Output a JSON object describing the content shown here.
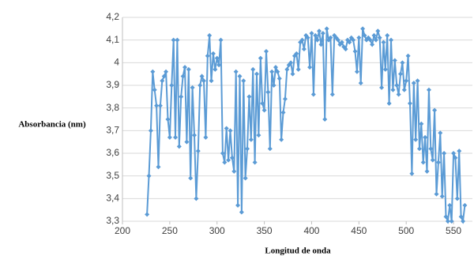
{
  "chart_data": {
    "type": "line",
    "xlabel": "Longitud de onda",
    "ylabel": "Absorbancia (nm)",
    "xlim": [
      200,
      570
    ],
    "xticks": [
      200,
      250,
      300,
      350,
      400,
      450,
      500,
      550
    ],
    "ylim": [
      3.3,
      4.2
    ],
    "yticks": [
      {
        "value": 3.3,
        "label": "3,3"
      },
      {
        "value": 3.4,
        "label": "3,4"
      },
      {
        "value": 3.5,
        "label": "3,5"
      },
      {
        "value": 3.6,
        "label": "3,6"
      },
      {
        "value": 3.7,
        "label": "3,7"
      },
      {
        "value": 3.8,
        "label": "3,8"
      },
      {
        "value": 3.9,
        "label": "3,9"
      },
      {
        "value": 4,
        "label": "4"
      },
      {
        "value": 4.1,
        "label": "4,1"
      },
      {
        "value": 4.2,
        "label": "4,2"
      }
    ],
    "grid": true,
    "color": "#5b9bd5",
    "x": [
      226,
      228,
      230,
      232,
      234,
      236,
      238,
      240,
      242,
      244,
      246,
      248,
      250,
      252,
      254,
      256,
      258,
      260,
      262,
      264,
      266,
      268,
      270,
      272,
      274,
      276,
      278,
      280,
      282,
      284,
      286,
      288,
      290,
      292,
      294,
      296,
      298,
      300,
      302,
      304,
      306,
      308,
      310,
      312,
      314,
      316,
      318,
      320,
      322,
      324,
      326,
      328,
      330,
      332,
      334,
      336,
      338,
      340,
      342,
      344,
      346,
      348,
      350,
      352,
      354,
      356,
      358,
      360,
      362,
      364,
      366,
      368,
      370,
      372,
      374,
      376,
      378,
      380,
      382,
      384,
      386,
      388,
      390,
      392,
      394,
      396,
      398,
      400,
      402,
      404,
      406,
      408,
      410,
      412,
      414,
      416,
      418,
      420,
      422,
      424,
      426,
      428,
      430,
      432,
      434,
      436,
      438,
      440,
      442,
      444,
      446,
      448,
      450,
      452,
      454,
      456,
      458,
      460,
      462,
      464,
      466,
      468,
      470,
      472,
      474,
      476,
      478,
      480,
      482,
      484,
      486,
      488,
      490,
      492,
      494,
      496,
      498,
      500,
      502,
      504,
      506,
      508,
      510,
      512,
      514,
      516,
      518,
      520,
      522,
      524,
      526,
      528,
      530,
      532,
      534,
      536,
      538,
      540,
      542,
      544,
      546,
      548,
      550,
      552,
      554,
      556,
      558,
      560,
      562
    ],
    "values": [
      3.33,
      3.5,
      3.7,
      3.96,
      3.88,
      3.81,
      3.54,
      3.81,
      3.92,
      3.94,
      3.96,
      3.75,
      3.67,
      3.9,
      4.1,
      3.67,
      4.1,
      3.63,
      3.85,
      3.94,
      3.98,
      3.65,
      3.97,
      3.49,
      3.89,
      3.68,
      3.4,
      3.61,
      3.9,
      3.94,
      3.92,
      3.67,
      4.03,
      4.12,
      3.92,
      4.04,
      3.97,
      4.02,
      3.99,
      4.1,
      3.6,
      3.56,
      3.71,
      3.57,
      3.7,
      3.58,
      3.52,
      3.96,
      3.37,
      3.94,
      3.34,
      3.92,
      3.49,
      3.62,
      3.85,
      3.66,
      3.97,
      3.56,
      3.95,
      3.68,
      4.02,
      3.82,
      3.79,
      4.05,
      3.87,
      3.62,
      3.96,
      3.9,
      3.98,
      3.96,
      3.93,
      3.66,
      3.78,
      3.84,
      3.97,
      3.99,
      4.0,
      3.95,
      4.03,
      4.04,
      3.97,
      4.09,
      4.1,
      4.06,
      4.12,
      4.11,
      3.98,
      4.13,
      3.86,
      4.12,
      4.1,
      4.14,
      4.08,
      4.13,
      3.75,
      4.15,
      4.1,
      4.11,
      3.86,
      4.12,
      4.11,
      4.1,
      4.08,
      4.09,
      4.07,
      4.06,
      4.1,
      4.09,
      4.11,
      4.1,
      4.05,
      3.96,
      4.11,
      3.91,
      4.15,
      4.12,
      4.1,
      4.11,
      4.1,
      4.08,
      4.12,
      4.1,
      4.14,
      4.11,
      3.89,
      4.09,
      3.97,
      4.12,
      3.82,
      4.1,
      3.88,
      4.01,
      3.9,
      3.86,
      3.95,
      4.0,
      3.88,
      3.92,
      4.03,
      3.82,
      3.51,
      3.91,
      3.66,
      3.92,
      3.62,
      3.73,
      3.56,
      3.67,
      3.52,
      3.88,
      3.62,
      3.57,
      3.79,
      3.42,
      3.56,
      3.69,
      3.41,
      3.6,
      3.32,
      3.3,
      3.37,
      3.3,
      3.6,
      3.58,
      3.4,
      3.61,
      3.32,
      3.3,
      3.37
    ]
  }
}
